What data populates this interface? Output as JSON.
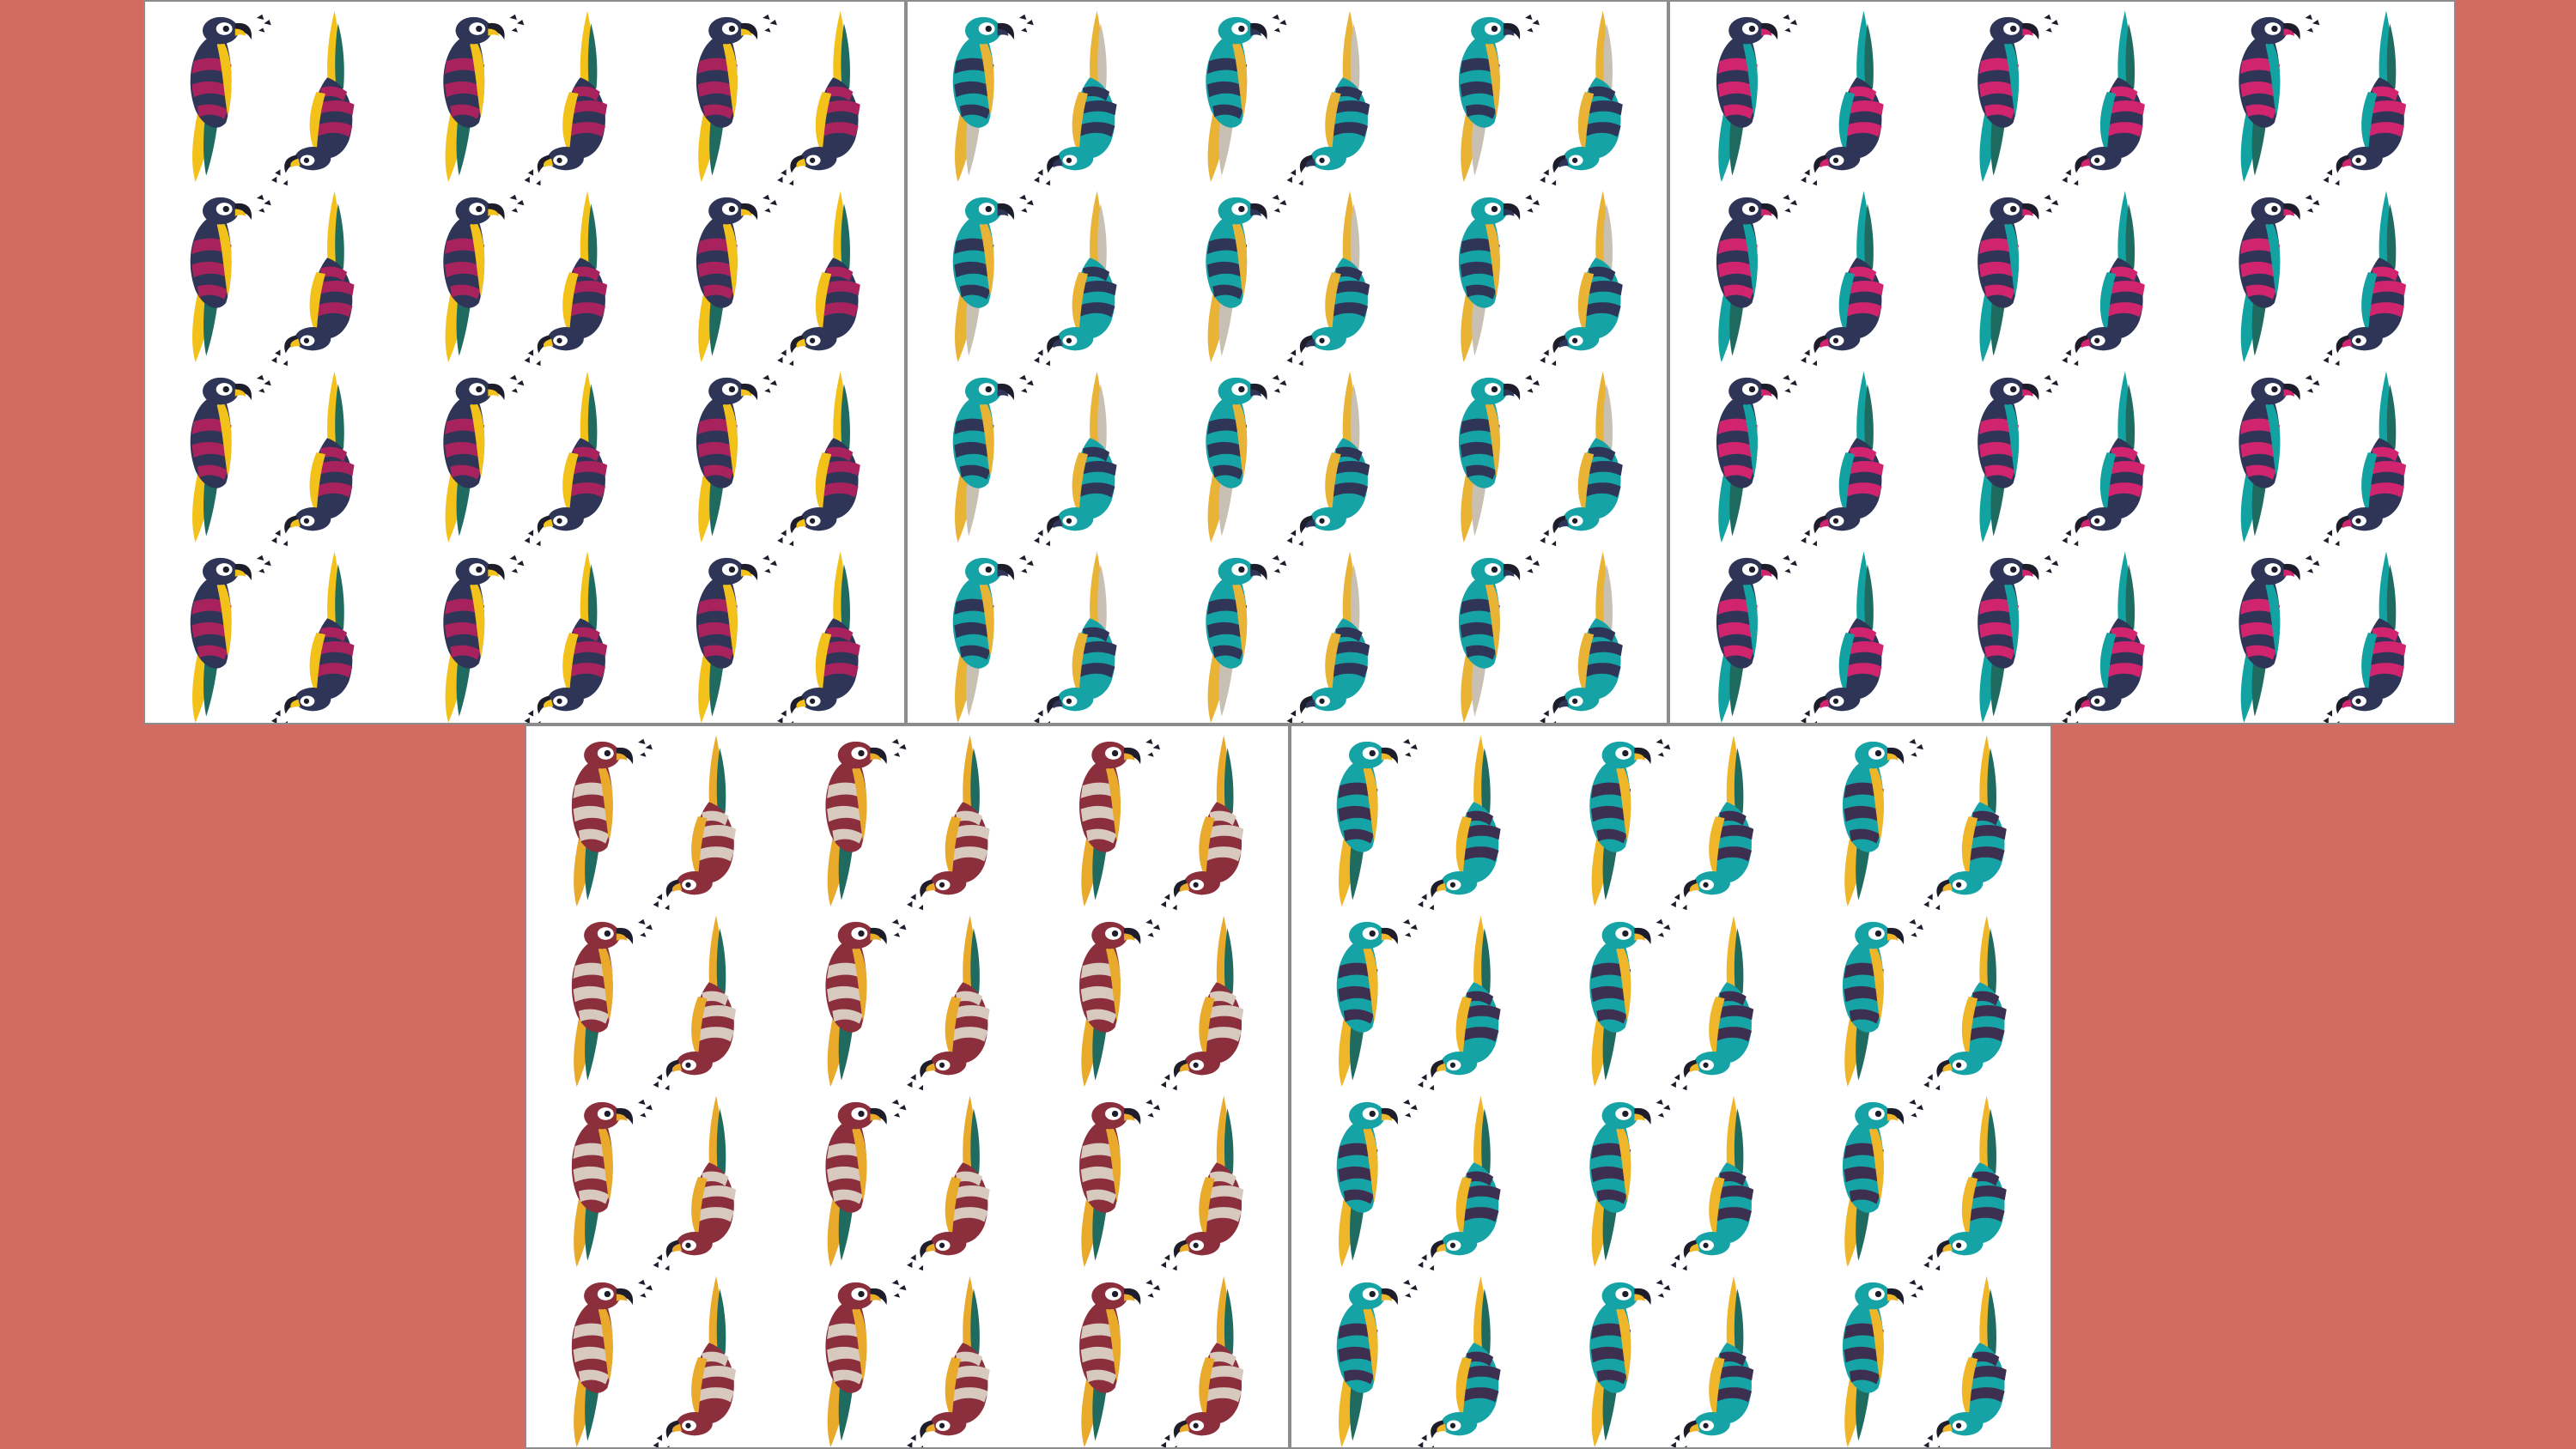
{
  "panels": [
    {
      "id": "panel-1",
      "palette": {
        "body": "#2e3556",
        "wing": "#a8235e",
        "accent": "#f3c21a",
        "green": "#1f6b5f",
        "beak": "#f3c21a"
      }
    },
    {
      "id": "panel-2",
      "palette": {
        "body": "#16a3a6",
        "wing": "#2e3556",
        "accent": "#e9b336",
        "green": "#c9c0b4",
        "beak": "#2e3556"
      }
    },
    {
      "id": "panel-3",
      "palette": {
        "body": "#2e3556",
        "wing": "#d0246e",
        "accent": "#13a2a2",
        "green": "#1f6b5f",
        "beak": "#d0246e"
      }
    },
    {
      "id": "panel-4",
      "palette": {
        "body": "#8a2f3b",
        "wing": "#d8c9bf",
        "accent": "#e9a92a",
        "green": "#1f6b5f",
        "beak": "#e9a92a"
      }
    },
    {
      "id": "panel-5",
      "palette": {
        "body": "#16a3a6",
        "wing": "#3d2f50",
        "accent": "#f0b62a",
        "green": "#1f6b5f",
        "beak": "#f0b62a"
      }
    }
  ],
  "pattern": {
    "rows": 4,
    "cols": 3,
    "icon": "parrot-icon"
  }
}
